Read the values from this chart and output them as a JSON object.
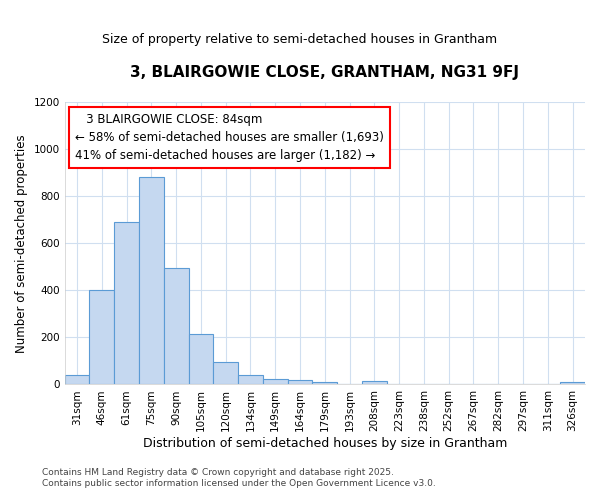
{
  "title": "3, BLAIRGOWIE CLOSE, GRANTHAM, NG31 9FJ",
  "subtitle": "Size of property relative to semi-detached houses in Grantham",
  "xlabel": "Distribution of semi-detached houses by size in Grantham",
  "ylabel": "Number of semi-detached properties",
  "categories": [
    "31sqm",
    "46sqm",
    "61sqm",
    "75sqm",
    "90sqm",
    "105sqm",
    "120sqm",
    "134sqm",
    "149sqm",
    "164sqm",
    "179sqm",
    "193sqm",
    "208sqm",
    "223sqm",
    "238sqm",
    "252sqm",
    "267sqm",
    "282sqm",
    "297sqm",
    "311sqm",
    "326sqm"
  ],
  "values": [
    40,
    400,
    690,
    880,
    495,
    215,
    95,
    42,
    22,
    20,
    10,
    0,
    15,
    0,
    0,
    0,
    0,
    0,
    0,
    0,
    10
  ],
  "bar_color": "#c5d8f0",
  "bar_edge_color": "#5b9bd5",
  "background_color": "#ffffff",
  "grid_color": "#d0dff0",
  "ylim": [
    0,
    1200
  ],
  "yticks": [
    0,
    200,
    400,
    600,
    800,
    1000,
    1200
  ],
  "annotation_title": "3 BLAIRGOWIE CLOSE: 84sqm",
  "annotation_line1": "← 58% of semi-detached houses are smaller (1,693)",
  "annotation_line2": "41% of semi-detached houses are larger (1,182) →",
  "footnote1": "Contains HM Land Registry data © Crown copyright and database right 2025.",
  "footnote2": "Contains public sector information licensed under the Open Government Licence v3.0."
}
